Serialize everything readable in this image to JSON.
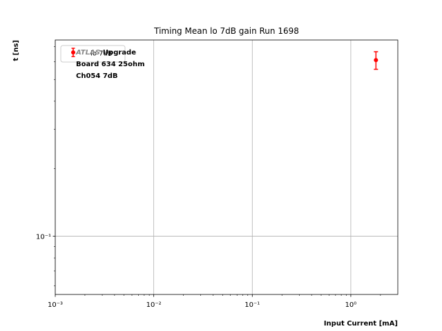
{
  "chart_data": {
    "type": "scatter",
    "title": "Timing Mean lo 7dB gain Run 1698",
    "xlabel": "Input Current [mA]",
    "ylabel": "t [ns]",
    "xscale": "log",
    "yscale": "log",
    "xlim": [
      0.001,
      3.0
    ],
    "ylim": [
      0.055,
      0.75
    ],
    "x_ticks": [
      {
        "value": 0.001,
        "label": "10⁻³"
      },
      {
        "value": 0.01,
        "label": "10⁻²"
      },
      {
        "value": 0.1,
        "label": "10⁻¹"
      },
      {
        "value": 1,
        "label": "10⁰"
      }
    ],
    "y_ticks": [
      {
        "value": 0.1,
        "label": "10⁻¹"
      }
    ],
    "grid": true,
    "legend_position": "top-left",
    "series": [
      {
        "name": "lo 7dB",
        "color": "#ff0000",
        "points": [
          {
            "x": 1.8,
            "y": 0.61,
            "err_low": 0.055,
            "err_high": 0.055
          }
        ]
      }
    ],
    "annotation": {
      "line1_prefix": "ATLAS",
      "line1_suffix": "Upgrade",
      "line2": "Board 634 25ohm",
      "line3": "Ch054 7dB"
    }
  }
}
